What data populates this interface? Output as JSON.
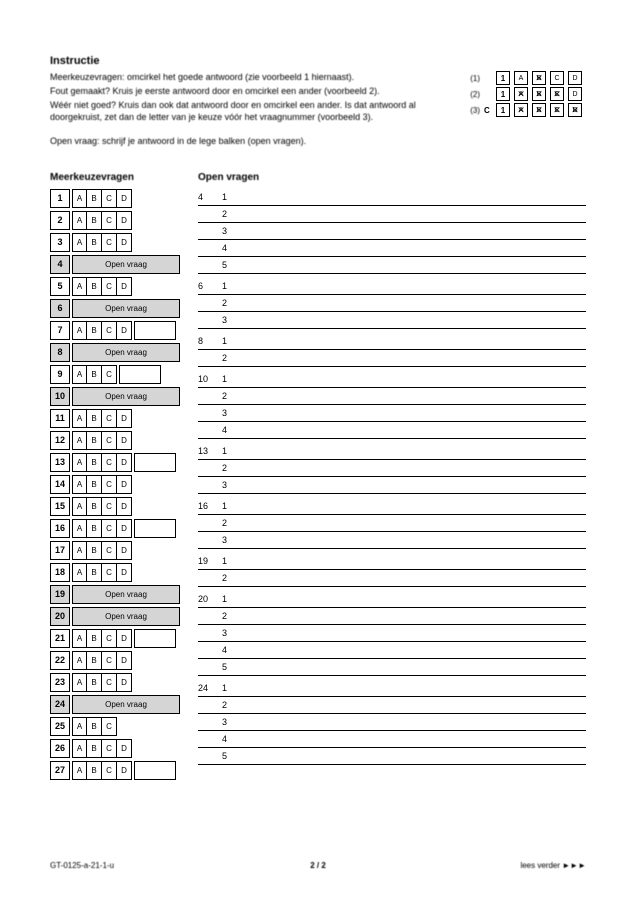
{
  "header": {
    "title": "Instructie",
    "lines": [
      "Meerkeuzevragen: omcirkel het goede antwoord (zie voorbeeld 1 hiernaast).",
      "Fout gemaakt? Kruis je eerste antwoord door en omcirkel een ander (voorbeeld 2).",
      "Wéér niet goed? Kruis dan ook dat antwoord door en omcirkel een ander. Is dat antwoord al doorgekruist, zet dan de letter van je keuze vóór het vraagnummer (voorbeeld 3).",
      "Open vraag: schrijf je antwoord in de lege balken (open vragen)."
    ],
    "demos": [
      {
        "label": "(1)",
        "num": "1",
        "cells": [
          {
            "t": "A"
          },
          {
            "t": "B",
            "x": true
          },
          {
            "t": "C"
          },
          {
            "t": "D"
          }
        ]
      },
      {
        "label": "(2)",
        "num": "1",
        "cells": [
          {
            "t": "A",
            "x": true
          },
          {
            "t": "B",
            "x": true
          },
          {
            "t": "C",
            "x": true
          },
          {
            "t": "D"
          }
        ]
      },
      {
        "label": "(3)",
        "pre": "C",
        "num": "1",
        "cells": [
          {
            "t": "A",
            "x": true
          },
          {
            "t": "B",
            "x": true
          },
          {
            "t": "C",
            "x": true
          },
          {
            "t": "D",
            "x": true
          }
        ]
      }
    ]
  },
  "left": {
    "heading": "Meerkeuzevragen",
    "options": [
      "A",
      "B",
      "C",
      "D"
    ],
    "open_label": "Open vraag",
    "rows": [
      {
        "n": 1,
        "type": "mc4"
      },
      {
        "n": 2,
        "type": "mc4"
      },
      {
        "n": 3,
        "type": "mc4"
      },
      {
        "n": 4,
        "type": "open",
        "sh": true
      },
      {
        "n": 5,
        "type": "mc4"
      },
      {
        "n": 6,
        "type": "open",
        "sh": true
      },
      {
        "n": 7,
        "type": "mc4c"
      },
      {
        "n": 8,
        "type": "open",
        "sh": true
      },
      {
        "n": 9,
        "type": "mc3c"
      },
      {
        "n": 10,
        "type": "open",
        "sh": true
      },
      {
        "n": 11,
        "type": "mc4"
      },
      {
        "n": 12,
        "type": "mc4"
      },
      {
        "n": 13,
        "type": "mc4c"
      },
      {
        "n": 14,
        "type": "mc4"
      },
      {
        "n": 15,
        "type": "mc4"
      },
      {
        "n": 16,
        "type": "mc4c"
      },
      {
        "n": 17,
        "type": "mc4"
      },
      {
        "n": 18,
        "type": "mc4"
      },
      {
        "n": 19,
        "type": "open",
        "sh": true
      },
      {
        "n": 20,
        "type": "open",
        "sh": true
      },
      {
        "n": 21,
        "type": "mc4c"
      },
      {
        "n": 22,
        "type": "mc4"
      },
      {
        "n": 23,
        "type": "mc4"
      },
      {
        "n": 24,
        "type": "open",
        "sh": true
      },
      {
        "n": 25,
        "type": "mc3"
      },
      {
        "n": 26,
        "type": "mc4"
      },
      {
        "n": 27,
        "type": "mc4c"
      }
    ]
  },
  "right": {
    "heading": "Open vragen",
    "groups": [
      {
        "q": "4",
        "lines": 5
      },
      {
        "q": "6",
        "lines": 3
      },
      {
        "q": "8",
        "lines": 2
      },
      {
        "q": "10",
        "lines": 4
      },
      {
        "q": "13",
        "lines": 3
      },
      {
        "q": "16",
        "lines": 3
      },
      {
        "q": "19",
        "lines": 2
      },
      {
        "q": "20",
        "lines": 5
      },
      {
        "q": "24",
        "lines": 5
      }
    ]
  },
  "footer": {
    "left": "GT-0125-a-21-1-u",
    "center": "2 / 2",
    "right": "lees verder ►►►"
  },
  "colors": {
    "page_bg": "#ffffff",
    "border": "#000000",
    "shade": "#d5d5d5",
    "text": "#000000"
  }
}
